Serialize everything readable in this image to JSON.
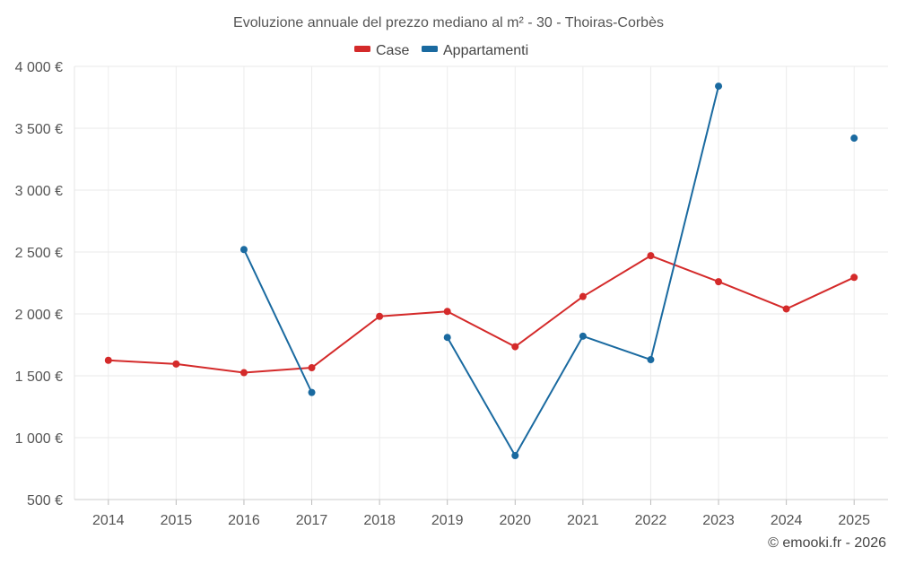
{
  "chart_data": {
    "type": "line",
    "title": "Evoluzione annuale del prezzo mediano al m² - 30 - Thoiras-Corbès",
    "xlabel": "",
    "ylabel": "",
    "categories": [
      "2014",
      "2015",
      "2016",
      "2017",
      "2018",
      "2019",
      "2020",
      "2021",
      "2022",
      "2023",
      "2024",
      "2025"
    ],
    "y_ticks": [
      500,
      1000,
      1500,
      2000,
      2500,
      3000,
      3500,
      4000
    ],
    "y_tick_labels": [
      "500 €",
      "1 000 €",
      "1 500 €",
      "2 000 €",
      "2 500 €",
      "3 000 €",
      "3 500 €",
      "4 000 €"
    ],
    "ylim": [
      500,
      4000
    ],
    "grid": true,
    "legend_position": "top-center",
    "series": [
      {
        "name": "Case",
        "color": "#d42a2a",
        "values": [
          1625,
          1595,
          1525,
          1565,
          1980,
          2020,
          1735,
          2140,
          2470,
          2260,
          2040,
          2295
        ]
      },
      {
        "name": "Appartamenti",
        "color": "#1a6aa0",
        "values": [
          null,
          null,
          2520,
          1365,
          null,
          1810,
          855,
          1820,
          1630,
          3840,
          null,
          3420
        ]
      }
    ]
  },
  "credit": "© emooki.fr - 2026"
}
